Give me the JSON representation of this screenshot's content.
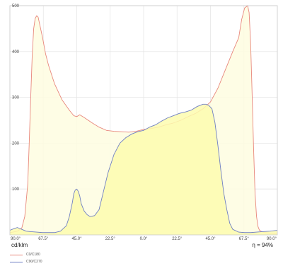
{
  "chart_data": {
    "type": "area",
    "x_tick_labels": [
      "90.0°",
      "67.5°",
      "45.0°",
      "22.5°",
      "0.0°",
      "22.5°",
      "45.0°",
      "67.5°",
      "90.0°"
    ],
    "y_ticks": [
      100,
      200,
      300,
      400,
      500
    ],
    "xlim": [
      -90,
      90
    ],
    "ylim": [
      0,
      500
    ],
    "grid": true,
    "unit_label": "cd/klm",
    "efficiency_label": "η = 94%",
    "colors": {
      "c0_line": "#e8877c",
      "c0_fill": "#fefde0",
      "c90_line": "#6f7fc4",
      "c90_fill": "#fdfcaf"
    },
    "series": [
      {
        "name": "C0/C180",
        "x": [
          -90,
          -88,
          -85,
          -82,
          -80,
          -78,
          -77,
          -76,
          -75,
          -74,
          -73,
          -72,
          -71,
          -70,
          -68,
          -66,
          -64,
          -60,
          -55,
          -50,
          -47,
          -45,
          -43,
          -40,
          -35,
          -30,
          -25,
          -20,
          -15,
          -10,
          -5,
          0,
          5,
          10,
          15,
          20,
          25,
          30,
          35,
          40,
          45,
          50,
          55,
          60,
          64,
          66,
          68,
          70,
          71,
          72,
          73,
          74,
          75,
          76,
          77,
          78,
          80,
          82,
          85,
          88,
          90
        ],
        "values": [
          5,
          6,
          8,
          15,
          40,
          110,
          200,
          300,
          390,
          450,
          472,
          478,
          475,
          460,
          430,
          395,
          370,
          330,
          295,
          272,
          260,
          258,
          262,
          256,
          245,
          235,
          228,
          226,
          225,
          224,
          226,
          230,
          232,
          235,
          240,
          244,
          250,
          258,
          265,
          275,
          290,
          320,
          360,
          400,
          430,
          470,
          495,
          500,
          485,
          420,
          310,
          190,
          90,
          40,
          18,
          10,
          6,
          5,
          4,
          3,
          3
        ]
      },
      {
        "name": "C90/C270",
        "x": [
          -90,
          -87,
          -85,
          -82,
          -79,
          -76,
          -72,
          -68,
          -64,
          -60,
          -56,
          -52,
          -50,
          -48,
          -47,
          -46,
          -45,
          -44,
          -43,
          -42,
          -40,
          -38,
          -36,
          -33,
          -30,
          -27,
          -24,
          -20,
          -16,
          -12,
          -8,
          -4,
          0,
          4,
          8,
          12,
          16,
          20,
          24,
          28,
          32,
          36,
          40,
          42,
          44,
          46,
          48,
          50,
          52,
          54,
          56,
          58,
          60,
          64,
          68,
          72,
          76,
          80,
          85,
          90
        ],
        "values": [
          10,
          14,
          16,
          12,
          8,
          7,
          6,
          5,
          5,
          5,
          8,
          20,
          40,
          70,
          90,
          98,
          100,
          95,
          85,
          68,
          52,
          44,
          40,
          42,
          55,
          95,
          135,
          175,
          200,
          212,
          220,
          225,
          228,
          235,
          240,
          248,
          255,
          260,
          265,
          268,
          272,
          280,
          285,
          285,
          282,
          275,
          245,
          195,
          140,
          90,
          55,
          25,
          12,
          6,
          5,
          5,
          6,
          7,
          8,
          10
        ]
      }
    ]
  }
}
